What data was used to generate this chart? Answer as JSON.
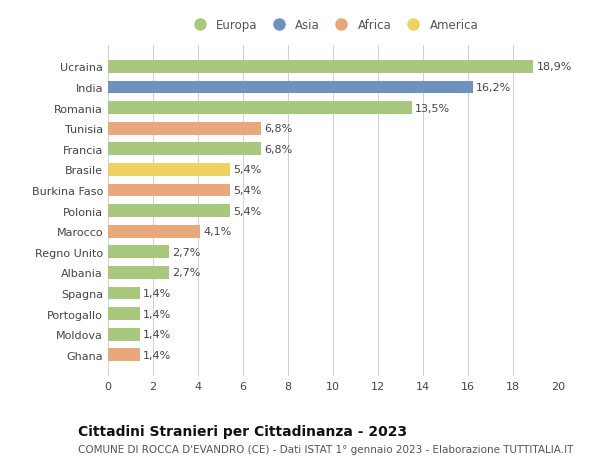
{
  "countries": [
    "Ucraina",
    "India",
    "Romania",
    "Tunisia",
    "Francia",
    "Brasile",
    "Burkina Faso",
    "Polonia",
    "Marocco",
    "Regno Unito",
    "Albania",
    "Spagna",
    "Portogallo",
    "Moldova",
    "Ghana"
  ],
  "values": [
    18.9,
    16.2,
    13.5,
    6.8,
    6.8,
    5.4,
    5.4,
    5.4,
    4.1,
    2.7,
    2.7,
    1.4,
    1.4,
    1.4,
    1.4
  ],
  "labels": [
    "18,9%",
    "16,2%",
    "13,5%",
    "6,8%",
    "6,8%",
    "5,4%",
    "5,4%",
    "5,4%",
    "4,1%",
    "2,7%",
    "2,7%",
    "1,4%",
    "1,4%",
    "1,4%",
    "1,4%"
  ],
  "continents": [
    "Europa",
    "Asia",
    "Europa",
    "Africa",
    "Europa",
    "America",
    "Africa",
    "Europa",
    "Africa",
    "Europa",
    "Europa",
    "Europa",
    "Europa",
    "Europa",
    "Africa"
  ],
  "continent_colors": {
    "Europa": "#a8c87e",
    "Asia": "#7090be",
    "Africa": "#e8a87c",
    "America": "#f0d060"
  },
  "legend_order": [
    "Europa",
    "Asia",
    "Africa",
    "America"
  ],
  "xlim": [
    0,
    20
  ],
  "xticks": [
    0,
    2,
    4,
    6,
    8,
    10,
    12,
    14,
    16,
    18,
    20
  ],
  "title": "Cittadini Stranieri per Cittadinanza - 2023",
  "subtitle": "COMUNE DI ROCCA D'EVANDRO (CE) - Dati ISTAT 1° gennaio 2023 - Elaborazione TUTTITALIA.IT",
  "background_color": "#ffffff",
  "grid_color": "#d0d0d0",
  "bar_height": 0.62,
  "label_fontsize": 8,
  "tick_fontsize": 8,
  "title_fontsize": 10,
  "subtitle_fontsize": 7.5
}
